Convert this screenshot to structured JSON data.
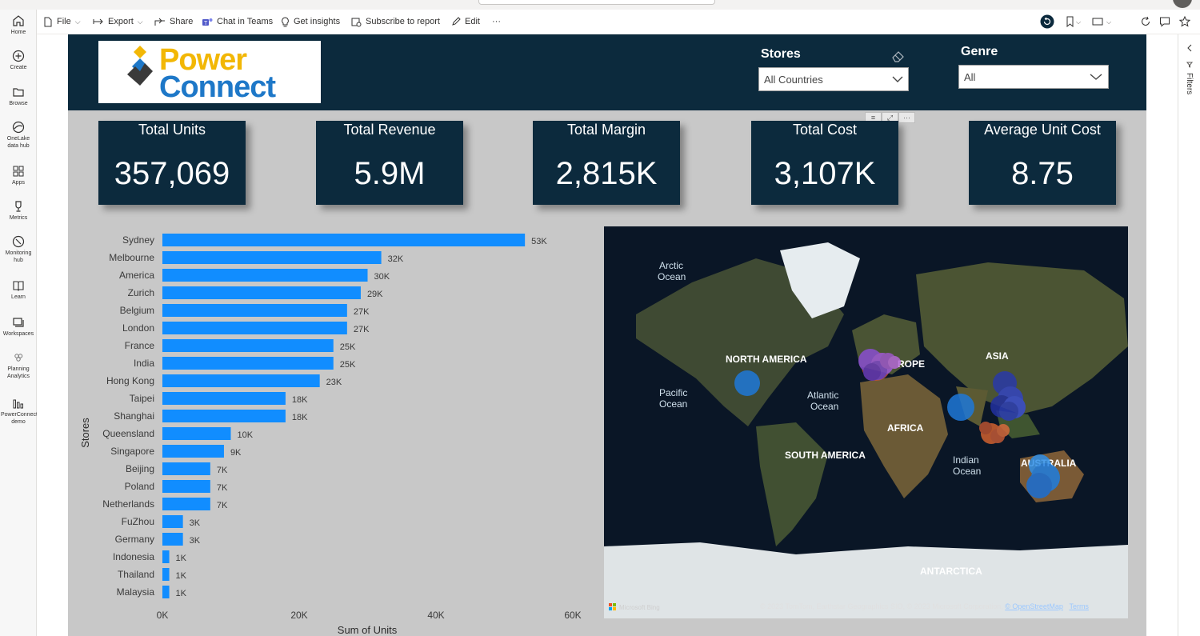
{
  "toolbar": {
    "file": "File",
    "export": "Export",
    "share": "Share",
    "chat": "Chat in Teams",
    "insights": "Get insights",
    "subscribe": "Subscribe to report",
    "edit": "Edit",
    "more": "···"
  },
  "nav": [
    {
      "label": "Home",
      "icon": "home-icon"
    },
    {
      "label": "Create",
      "icon": "plus-icon"
    },
    {
      "label": "Browse",
      "icon": "folder-icon"
    },
    {
      "label": "OneLake data hub",
      "icon": "onelake-icon"
    },
    {
      "label": "Apps",
      "icon": "apps-icon"
    },
    {
      "label": "Metrics",
      "icon": "trophy-icon"
    },
    {
      "label": "Monitoring hub",
      "icon": "monitor-icon"
    },
    {
      "label": "Learn",
      "icon": "book-icon"
    },
    {
      "label": "Workspaces",
      "icon": "workspaces-icon"
    },
    {
      "label": "Planning Analytics",
      "icon": "planning-icon"
    },
    {
      "label": "PowerConnect demo",
      "icon": "report-icon"
    }
  ],
  "filters_label": "Filters",
  "logo": {
    "line1": "Power",
    "line2": "Connect"
  },
  "slicers": {
    "stores": {
      "title": "Stores",
      "value": "All Countries"
    },
    "genre": {
      "title": "Genre",
      "value": "All"
    }
  },
  "kpis": [
    {
      "title": "Total Units",
      "value": "357,069"
    },
    {
      "title": "Total Revenue",
      "value": "5.9M"
    },
    {
      "title": "Total Margin",
      "value": "2,815K"
    },
    {
      "title": "Total Cost",
      "value": "3,107K"
    },
    {
      "title": "Average Unit Cost",
      "value": "8.75"
    }
  ],
  "colors": {
    "header": "#0c2a3d",
    "bar": "#118dff",
    "canvas": "#c8c8c8"
  },
  "chart_data": {
    "type": "bar",
    "orientation": "horizontal",
    "categories": [
      "Sydney",
      "Melbourne",
      "America",
      "Zurich",
      "Belgium",
      "London",
      "France",
      "India",
      "Hong Kong",
      "Taipei",
      "Shanghai",
      "Queensland",
      "Singapore",
      "Beijing",
      "Poland",
      "Netherlands",
      "FuZhou",
      "Germany",
      "Indonesia",
      "Thailand",
      "Malaysia"
    ],
    "values": [
      53000,
      32000,
      30000,
      29000,
      27000,
      27000,
      25000,
      25000,
      23000,
      18000,
      18000,
      10000,
      9000,
      7000,
      7000,
      7000,
      3000,
      3000,
      1000,
      1000,
      1000
    ],
    "labels": [
      "53K",
      "32K",
      "30K",
      "29K",
      "27K",
      "27K",
      "25K",
      "25K",
      "23K",
      "18K",
      "18K",
      "10K",
      "9K",
      "7K",
      "7K",
      "7K",
      "3K",
      "3K",
      "1K",
      "1K",
      "1K"
    ],
    "xlabel": "Sum of Units",
    "ylabel": "Stores",
    "xlim": [
      0,
      60000
    ],
    "ticks": [
      "0K",
      "20K",
      "40K",
      "60K"
    ]
  },
  "map": {
    "labels": [
      "Arctic Ocean",
      "NORTH AMERICA",
      "Pacific Ocean",
      "Atlantic Ocean",
      "ROPE",
      "ASIA",
      "AFRICA",
      "SOUTH AMERICA",
      "Indian Ocean",
      "AUSTRALIA",
      "ANTARCTICA"
    ],
    "brand": "Microsoft Bing",
    "attribution": "© 2023 TomTom, Earthstar Geographics SIO, © 2023 Microsoft Corporation,",
    "osm": "© OpenStreetMap",
    "terms": "Terms"
  }
}
